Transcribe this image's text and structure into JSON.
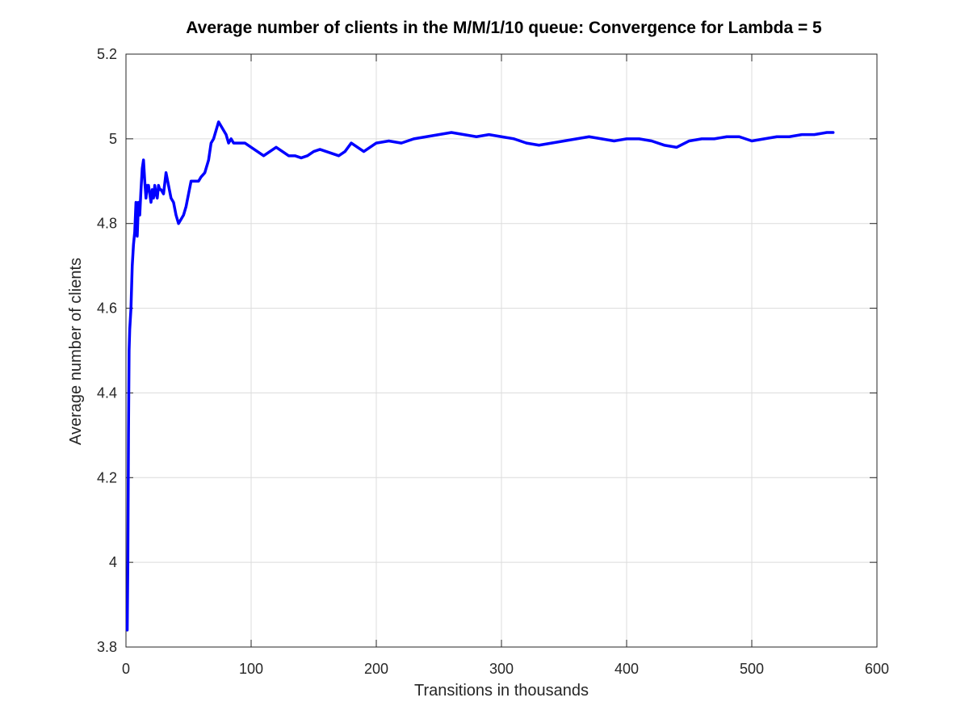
{
  "chart_data": {
    "type": "line",
    "title": "Average number of clients in the M/M/1/10 queue: Convergence for Lambda = 5",
    "xlabel": "Transitions in thousands",
    "ylabel": "Average number of clients",
    "xlim": [
      0,
      600
    ],
    "ylim": [
      3.8,
      5.2
    ],
    "xticks": [
      0,
      100,
      200,
      300,
      400,
      500,
      600
    ],
    "yticks": [
      3.8,
      4,
      4.2,
      4.4,
      4.6,
      4.8,
      5,
      5.2
    ],
    "xtick_labels": [
      "0",
      "100",
      "200",
      "300",
      "400",
      "500",
      "600"
    ],
    "ytick_labels": [
      "3.8",
      "4",
      "4.2",
      "4.4",
      "4.6",
      "4.8",
      "5",
      "5.2"
    ],
    "grid": true,
    "legend": "none",
    "series": [
      {
        "color": "#0000ff",
        "x": [
          1,
          1.5,
          2,
          2.5,
          3,
          4,
          5,
          6,
          7,
          8,
          9,
          10,
          11,
          12,
          13,
          14,
          15,
          16,
          17,
          18,
          19,
          20,
          21,
          22,
          23,
          24,
          25,
          26,
          27,
          28,
          30,
          32,
          34,
          36,
          38,
          40,
          42,
          44,
          46,
          48,
          50,
          52,
          55,
          58,
          60,
          63,
          66,
          68,
          70,
          72,
          74,
          76,
          78,
          80,
          82,
          84,
          86,
          88,
          90,
          95,
          100,
          105,
          110,
          115,
          120,
          125,
          130,
          135,
          140,
          145,
          150,
          155,
          160,
          165,
          170,
          175,
          180,
          185,
          190,
          195,
          200,
          210,
          220,
          230,
          240,
          250,
          260,
          270,
          280,
          290,
          300,
          310,
          320,
          330,
          340,
          350,
          360,
          370,
          380,
          390,
          400,
          410,
          420,
          430,
          440,
          450,
          460,
          470,
          480,
          490,
          500,
          510,
          520,
          530,
          540,
          550,
          560,
          565
        ],
        "y": [
          3.84,
          4.0,
          4.3,
          4.5,
          4.55,
          4.6,
          4.7,
          4.75,
          4.78,
          4.85,
          4.77,
          4.85,
          4.82,
          4.88,
          4.93,
          4.95,
          4.9,
          4.86,
          4.89,
          4.89,
          4.87,
          4.85,
          4.88,
          4.86,
          4.89,
          4.87,
          4.86,
          4.89,
          4.88,
          4.88,
          4.87,
          4.92,
          4.89,
          4.86,
          4.85,
          4.82,
          4.8,
          4.81,
          4.82,
          4.84,
          4.87,
          4.9,
          4.9,
          4.9,
          4.91,
          4.92,
          4.95,
          4.99,
          5.0,
          5.02,
          5.04,
          5.03,
          5.02,
          5.01,
          4.99,
          5.0,
          4.99,
          4.99,
          4.99,
          4.99,
          4.98,
          4.97,
          4.96,
          4.97,
          4.98,
          4.97,
          4.96,
          4.96,
          4.955,
          4.96,
          4.97,
          4.975,
          4.97,
          4.965,
          4.96,
          4.97,
          4.99,
          4.98,
          4.97,
          4.98,
          4.99,
          4.995,
          4.99,
          5.0,
          5.005,
          5.01,
          5.015,
          5.01,
          5.005,
          5.01,
          5.005,
          5.0,
          4.99,
          4.985,
          4.99,
          4.995,
          5.0,
          5.005,
          5.0,
          4.995,
          5.0,
          5.0,
          4.995,
          4.985,
          4.98,
          4.995,
          5.0,
          5.0,
          5.005,
          5.005,
          4.995,
          5.0,
          5.005,
          5.005,
          5.01,
          5.01,
          5.015,
          5.015
        ]
      }
    ]
  }
}
